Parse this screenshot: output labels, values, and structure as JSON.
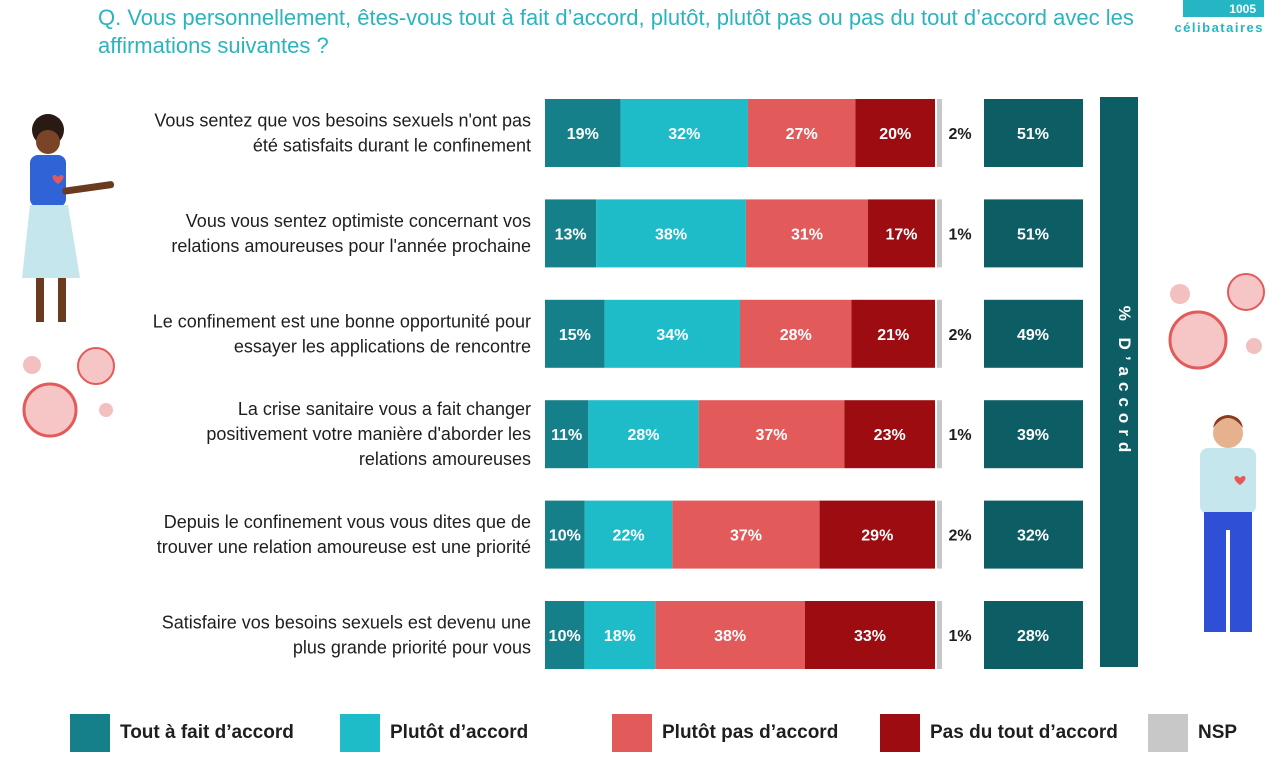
{
  "title": "Q. Vous personnellement, êtes-vous tout à fait d’accord, plutôt, plutôt pas ou pas du tout d’accord avec les affirmations suivantes ?",
  "logo": {
    "number": "1005",
    "brand": "célibataires"
  },
  "colors": {
    "tout_a_fait": "#16808a",
    "plutot": "#1dbcc8",
    "plutot_pas": "#e35a5a",
    "pas_du_tout": "#9c0c11",
    "nsp": "#c8c8c8",
    "accord_box": "#0d5e64",
    "side_bar": "#0d5e64"
  },
  "side_label": "% D’accord",
  "chart_data": {
    "type": "bar",
    "stacked": true,
    "orientation": "horizontal",
    "categories": [
      "Vous sentez que vos besoins sexuels n'ont pas été satisfaits durant le confinement",
      "Vous vous sentez optimiste concernant vos relations amoureuses pour l'année prochaine",
      "Le confinement est une bonne opportunité pour essayer les applications de rencontre",
      "La crise sanitaire vous a fait changer positivement votre manière d'aborder les relations amoureuses",
      "Depuis le confinement vous vous dites que de trouver une relation amoureuse est une priorité",
      "Satisfaire vos besoins sexuels est devenu une plus grande priorité pour vous"
    ],
    "category_lines": [
      [
        "Vous sentez que vos besoins sexuels n'ont pas",
        "été satisfaits durant le confinement"
      ],
      [
        "Vous vous sentez optimiste concernant vos",
        "relations amoureuses pour l'année prochaine"
      ],
      [
        "Le confinement est une bonne opportunité pour",
        "essayer les applications de rencontre"
      ],
      [
        "La crise sanitaire vous a fait changer",
        "positivement votre manière d'aborder les",
        "relations amoureuses"
      ],
      [
        "Depuis le confinement vous vous dites que de",
        "trouver une relation amoureuse est une priorité"
      ],
      [
        "Satisfaire vos besoins sexuels est devenu une",
        "plus grande priorité pour vous"
      ]
    ],
    "series": [
      {
        "name": "Tout à fait d’accord",
        "values": [
          19,
          13,
          15,
          11,
          10,
          10
        ]
      },
      {
        "name": "Plutôt d’accord",
        "values": [
          32,
          38,
          34,
          28,
          22,
          18
        ]
      },
      {
        "name": "Plutôt pas d’accord",
        "values": [
          27,
          31,
          28,
          37,
          37,
          38
        ]
      },
      {
        "name": "Pas du tout d’accord",
        "values": [
          20,
          17,
          21,
          23,
          29,
          33
        ]
      },
      {
        "name": "NSP",
        "values": [
          2,
          1,
          2,
          1,
          2,
          1
        ]
      }
    ],
    "accord_total": [
      51,
      51,
      49,
      39,
      32,
      28
    ],
    "unit": "%",
    "xlim": [
      0,
      100
    ],
    "legend_position": "bottom"
  }
}
